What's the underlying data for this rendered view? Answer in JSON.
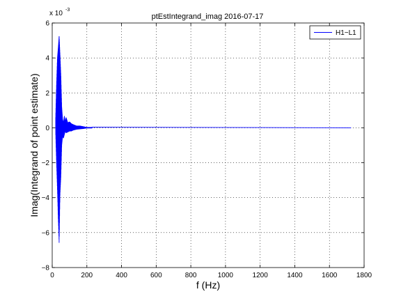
{
  "chart_data": {
    "type": "line",
    "title": "ptEstIntegrand_imag 2016-07-17",
    "xlabel": "f (Hz)",
    "ylabel": "Imag(Integrand of point estimate)",
    "y_exponent_label": "x 10",
    "y_exponent": "-3",
    "xlim": [
      0,
      1800
    ],
    "ylim": [
      -8,
      6
    ],
    "x_ticks": [
      0,
      200,
      400,
      600,
      800,
      1000,
      1200,
      1400,
      1600,
      1800
    ],
    "x_tick_labels": [
      "0",
      "200",
      "400",
      "600",
      "800",
      "1000",
      "1200",
      "1400",
      "1600",
      "1800"
    ],
    "y_ticks": [
      -8,
      -6,
      -4,
      -2,
      0,
      2,
      4,
      6
    ],
    "y_tick_labels": [
      "−8",
      "−6",
      "−4",
      "−2",
      "0",
      "2",
      "4",
      "6"
    ],
    "grid": true,
    "legend_position": "top-right",
    "series": [
      {
        "name": "H1−L1",
        "color": "#0000ff",
        "envelope": [
          {
            "f": 20,
            "min": -0.3,
            "max": 0.6
          },
          {
            "f": 25,
            "min": -2.0,
            "max": 2.5
          },
          {
            "f": 30,
            "min": -3.5,
            "max": 4.0
          },
          {
            "f": 35,
            "min": -5.2,
            "max": 4.6
          },
          {
            "f": 40,
            "min": -6.6,
            "max": 5.3
          },
          {
            "f": 45,
            "min": -3.8,
            "max": 4.2
          },
          {
            "f": 50,
            "min": -2.8,
            "max": 3.0
          },
          {
            "f": 55,
            "min": -1.0,
            "max": 1.2
          },
          {
            "f": 60,
            "min": -0.5,
            "max": 0.5
          },
          {
            "f": 65,
            "min": -0.6,
            "max": 0.3
          },
          {
            "f": 70,
            "min": -0.4,
            "max": 0.7
          },
          {
            "f": 75,
            "min": -0.2,
            "max": 0.35
          },
          {
            "f": 80,
            "min": -0.3,
            "max": 0.6
          },
          {
            "f": 90,
            "min": -0.25,
            "max": 0.3
          },
          {
            "f": 100,
            "min": -0.2,
            "max": 0.35
          },
          {
            "f": 110,
            "min": -0.2,
            "max": 0.25
          },
          {
            "f": 120,
            "min": -0.15,
            "max": 0.2
          },
          {
            "f": 140,
            "min": -0.1,
            "max": 0.12
          },
          {
            "f": 160,
            "min": -0.08,
            "max": 0.12
          },
          {
            "f": 180,
            "min": -0.06,
            "max": 0.08
          },
          {
            "f": 200,
            "min": -0.03,
            "max": 0.04
          },
          {
            "f": 1725,
            "min": 0,
            "max": 0
          }
        ]
      }
    ]
  }
}
